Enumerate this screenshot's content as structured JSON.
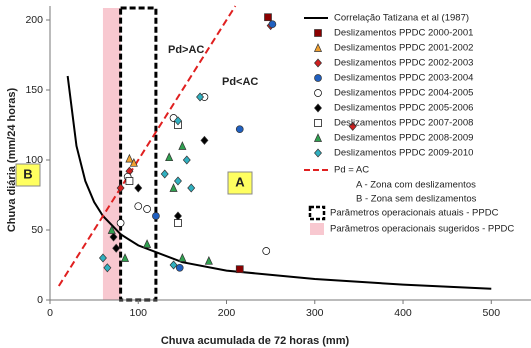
{
  "chart_data": {
    "type": "scatter",
    "xlabel": "Chuva acumulada de 72 horas (mm)",
    "ylabel": "Chuva diária (mm/24 horas)",
    "xlim": [
      0,
      545
    ],
    "ylim": [
      0,
      210
    ],
    "xticks": [
      0,
      100,
      200,
      300,
      400,
      500
    ],
    "yticks": [
      0,
      50,
      100,
      150,
      200
    ],
    "annotations": [
      "Pd>AC",
      "Pd<AC",
      "B",
      "A"
    ],
    "lines": [
      {
        "name": "Correlação Tatizana et al (1987)",
        "color": "#000000",
        "dash": false,
        "x": [
          20,
          30,
          40,
          50,
          60,
          80,
          100,
          150,
          200,
          300,
          400,
          500
        ],
        "values": [
          160,
          110,
          85,
          70,
          60,
          47,
          39,
          27,
          21,
          15,
          11,
          8
        ]
      }
    ],
    "series": [
      {
        "name": "Deslizamentos PPDC 2000-2001",
        "color": "#8b0000",
        "marker": "square",
        "x": [
          247,
          215
        ],
        "values": [
          202,
          22
        ]
      },
      {
        "name": "Deslizamentos PPDC 2001-2002",
        "color": "#f0a030",
        "marker": "triangle",
        "x": [
          90,
          95
        ],
        "values": [
          101,
          98
        ]
      },
      {
        "name": "Deslizamentos PPDC 2002-2003",
        "color": "#d02020",
        "marker": "diamond",
        "x": [
          250,
          343,
          80,
          90
        ],
        "values": [
          196,
          124,
          80,
          92
        ]
      },
      {
        "name": "Deslizamentos PPDC 2003-2004",
        "color": "#2060c0",
        "marker": "circle",
        "x": [
          215,
          252,
          147,
          120
        ],
        "values": [
          122,
          197,
          23,
          60
        ]
      },
      {
        "name": "Deslizamentos PPDC 2004-2005",
        "color": "#ffffff",
        "marker": "circle",
        "x": [
          175,
          140,
          100,
          110,
          80,
          245,
          88
        ],
        "values": [
          145,
          130,
          67,
          65,
          55,
          35,
          88
        ]
      },
      {
        "name": "Deslizamentos PPDC 2005-2006",
        "color": "#000000",
        "marker": "diamond",
        "x": [
          175,
          145,
          100,
          75,
          72
        ],
        "values": [
          114,
          60,
          80,
          37,
          45
        ]
      },
      {
        "name": "Deslizamentos PPDC 2007-2008",
        "color": "#ffffff",
        "marker": "square",
        "x": [
          145,
          90,
          145
        ],
        "values": [
          125,
          85,
          55
        ]
      },
      {
        "name": "Deslizamentos PPDC 2008-2009",
        "color": "#30a050",
        "marker": "triangle",
        "x": [
          135,
          150,
          140,
          110,
          70,
          150,
          180,
          85
        ],
        "values": [
          102,
          110,
          80,
          40,
          50,
          30,
          28,
          30
        ]
      },
      {
        "name": "Deslizamentos PPDC 2009-2010",
        "color": "#30b0c0",
        "marker": "diamond",
        "x": [
          170,
          145,
          130,
          160,
          155,
          145,
          65,
          140,
          60
        ],
        "values": [
          145,
          128,
          90,
          80,
          100,
          85,
          23,
          25,
          30
        ]
      }
    ],
    "diagonal": {
      "name": "Pd = AC",
      "color": "#e02020",
      "x": [
        10,
        210
      ],
      "values": [
        10,
        210
      ]
    },
    "legend_notes": [
      "A - Zona com deslizamentos",
      "B - Zona sem deslizamentos"
    ],
    "bands": [
      {
        "name": "Parâmetros operacionais atuais - PPDC",
        "style": "dashed-box",
        "color": "#000000",
        "x": [
          80,
          120
        ]
      },
      {
        "name": "Parâmetros operacionais sugeridos - PPDC",
        "style": "fill",
        "color": "#f8c8d0",
        "x": [
          60,
          80
        ]
      }
    ]
  }
}
